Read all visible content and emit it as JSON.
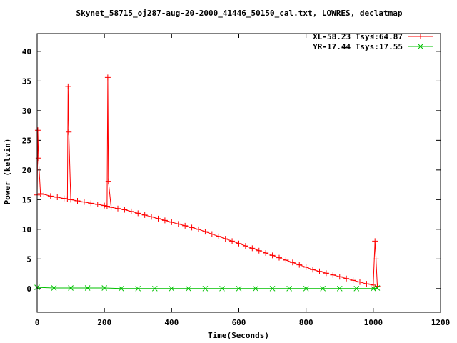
{
  "chart_data": {
    "type": "line",
    "title": "Skynet_58715_oj287-aug-20-2000_41446_50150_cal.txt, LOWRES, declatmap",
    "xlabel": "Time(Seconds)",
    "ylabel": "Power (kelvin)",
    "xlim": [
      0,
      1200
    ],
    "ylim": [
      -4,
      43
    ],
    "xticks": [
      0,
      200,
      400,
      600,
      800,
      1000,
      1200
    ],
    "yticks": [
      0,
      5,
      10,
      15,
      20,
      25,
      30,
      35,
      40
    ],
    "legend_position": "top-right",
    "series": [
      {
        "name": "XL-58.23 Tsys:64.87",
        "color": "#ff0000",
        "marker": "plus",
        "x": [
          0,
          2,
          4,
          10,
          20,
          40,
          60,
          80,
          90,
          92,
          94,
          100,
          120,
          140,
          160,
          180,
          200,
          208,
          210,
          212,
          220,
          240,
          260,
          280,
          300,
          320,
          340,
          360,
          380,
          400,
          420,
          440,
          460,
          480,
          500,
          520,
          540,
          560,
          580,
          600,
          620,
          640,
          660,
          680,
          700,
          720,
          740,
          760,
          780,
          800,
          820,
          840,
          860,
          880,
          900,
          920,
          940,
          960,
          980,
          1000,
          1005,
          1008,
          1012
        ],
        "y": [
          15.8,
          26.7,
          22.0,
          16.0,
          15.9,
          15.6,
          15.4,
          15.2,
          15.1,
          34.1,
          26.4,
          15.0,
          14.8,
          14.6,
          14.4,
          14.2,
          14.0,
          13.9,
          35.6,
          18.1,
          13.7,
          13.5,
          13.3,
          13.0,
          12.7,
          12.4,
          12.1,
          11.8,
          11.5,
          11.2,
          10.9,
          10.6,
          10.3,
          10.0,
          9.6,
          9.2,
          8.8,
          8.4,
          8.0,
          7.6,
          7.2,
          6.8,
          6.4,
          6.0,
          5.6,
          5.2,
          4.8,
          4.4,
          4.0,
          3.6,
          3.2,
          2.9,
          2.6,
          2.3,
          2.0,
          1.7,
          1.4,
          1.1,
          0.8,
          0.6,
          8.0,
          5.0,
          0.4
        ]
      },
      {
        "name": "YR-17.44 Tsys:17.55",
        "color": "#00c000",
        "marker": "cross",
        "x": [
          0,
          50,
          100,
          150,
          200,
          250,
          300,
          350,
          400,
          450,
          500,
          550,
          600,
          650,
          700,
          750,
          800,
          850,
          900,
          950,
          1000,
          1012
        ],
        "y": [
          0.2,
          0.1,
          0.1,
          0.1,
          0.1,
          0.0,
          0.0,
          0.0,
          0.0,
          0.0,
          0.0,
          0.0,
          0.0,
          0.0,
          0.0,
          0.0,
          0.0,
          0.0,
          0.0,
          0.0,
          0.0,
          0.1
        ]
      }
    ]
  }
}
